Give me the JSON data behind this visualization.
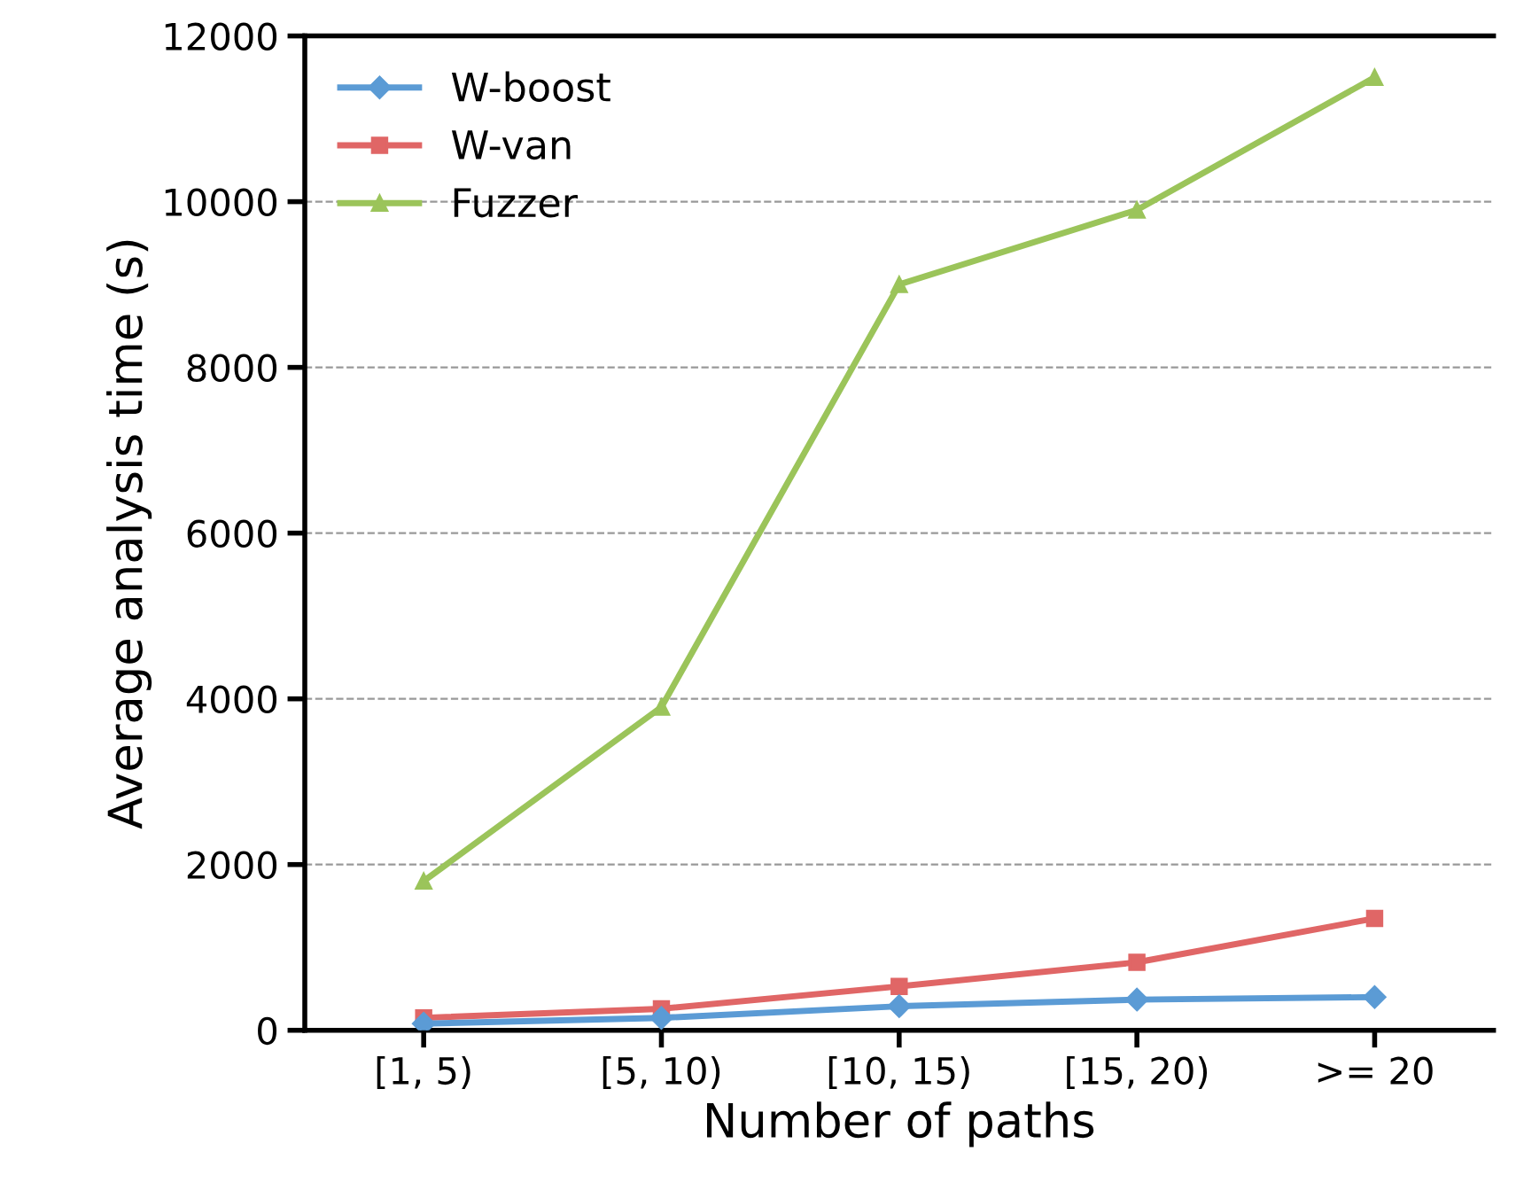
{
  "chart_data": {
    "type": "line",
    "xlabel": "Number of paths",
    "ylabel": "Average analysis time (s)",
    "categories": [
      "[1, 5)",
      "[5, 10)",
      "[10, 15)",
      "[15, 20)",
      ">= 20"
    ],
    "series": [
      {
        "name": "W-boost",
        "color": "#5b9bd5",
        "marker": "diamond",
        "values": [
          80,
          150,
          290,
          370,
          400
        ]
      },
      {
        "name": "W-van",
        "color": "#e06666",
        "marker": "square",
        "values": [
          150,
          260,
          530,
          820,
          1350
        ]
      },
      {
        "name": "Fuzzer",
        "color": "#9bc45a",
        "marker": "triangle",
        "values": [
          1800,
          3900,
          9000,
          9900,
          11500
        ]
      }
    ],
    "ylim": [
      0,
      12000
    ],
    "yticks": [
      0,
      2000,
      4000,
      6000,
      8000,
      10000,
      12000
    ],
    "grid": "y",
    "legend": "top left"
  }
}
